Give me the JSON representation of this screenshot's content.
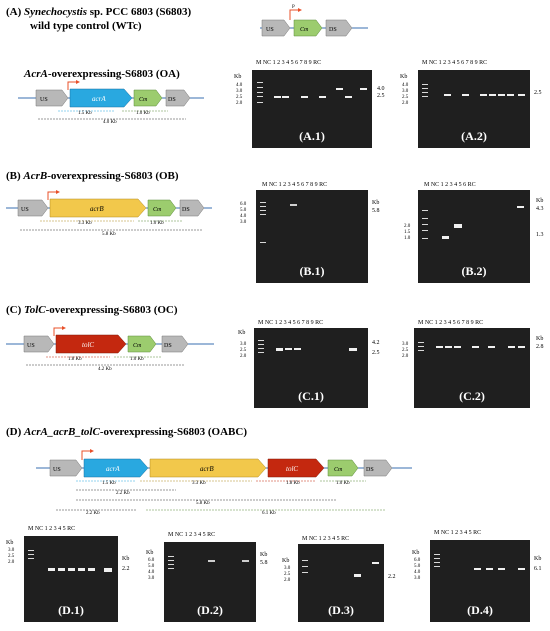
{
  "sections": {
    "A": {
      "letter": "(A)",
      "species": "Synechocystis",
      "rest": " sp. PCC 6803 (S6803)",
      "line2": "wild type control (WTc)"
    },
    "OA": {
      "gene": "AcrA",
      "rest": "-overexpressing-S6803 (OA)"
    },
    "B": {
      "letter": "(B)",
      "gene": "AcrB",
      "rest": "-overexpressing-S6803 (OB)"
    },
    "C": {
      "letter": "(C)",
      "gene": "TolC",
      "rest": "-overexpressing-S6803 (OC)"
    },
    "D": {
      "letter": "(D)",
      "gene": "AcrA_acrB_tolC",
      "rest": "-overexpressing-S6803 (OABC)"
    }
  },
  "constructs": {
    "wt": {
      "promoter": "PpsbA2",
      "us": "USpsbA2",
      "cm": "Cmr",
      "ds": "DSpsbA2"
    },
    "oa": {
      "promoter": "PpsbA2",
      "us": "USpsbA2",
      "gene": "acrA",
      "cm": "Cmr",
      "ds": "DSpsbA2",
      "dist1": "1.5 Kb",
      "dist2": "1.0 Kb",
      "dist3": "4.0 Kb"
    },
    "ob": {
      "promoter": "PpsbA2",
      "us": "USpsbA2",
      "gene": "acrB",
      "cm": "Cmr",
      "ds": "DSpsbA2",
      "dist1": "3.3 Kb",
      "dist2": "1.0 Kb",
      "dist3": "5.8 Kb"
    },
    "oc": {
      "promoter": "PpsbA2",
      "us": "USpsbA2",
      "gene": "tolC",
      "cm": "Cmr",
      "ds": "DSpsbA2",
      "dist1": "1.8 Kb",
      "dist2": "1.0 Kb",
      "dist3": "4.2 Kb"
    },
    "oabc": {
      "promoter": "PpsbA2",
      "us": "USpsbA2",
      "g1": "acrA",
      "g2": "acrB",
      "g3": "tolC",
      "cm": "Cmr",
      "ds": "DSpsbA2",
      "d1": "1.5 Kb",
      "d2": "3.3 Kb",
      "d3": "1.8 Kb",
      "d4": "1.0 Kb",
      "d5": "2.2 Kb",
      "d6": "5.8 Kb",
      "d7": "2.2 Kb",
      "d8": "6.1 Kb"
    }
  },
  "gels": {
    "a1": {
      "label": "(A.1)",
      "lanes": "M NC 1 2 3 4 5 6 7 8 9 RC",
      "sizes": "4.0\n3.0\n2.5\n2.0",
      "kb": "Kb",
      "right1": "4.0",
      "right2": "2.5"
    },
    "a2": {
      "label": "(A.2)",
      "lanes": "M NC 1 2 3 4 5 6 7 8 9 RC",
      "sizes": "4.0\n3.0\n2.5\n2.0",
      "kb": "Kb",
      "right1": "2.5"
    },
    "b1": {
      "label": "(B.1)",
      "lanes": "M NC 1 2 3 4 5 6 7 8 9 RC",
      "sizes": "6.0\n5.0\n4.0\n3.0",
      "kb": "Kb",
      "right1": "5.8"
    },
    "b2": {
      "label": "(B.2)",
      "lanes": "M NC 1 2 3 4 5 6 RC",
      "sizes": "2.0\n1.5\n1.0",
      "kb": "Kb",
      "right1": "4.3",
      "right2": "1.3"
    },
    "c1": {
      "label": "(C.1)",
      "lanes": "M NC 1 2 3 4 5 6 7 8 9 RC",
      "sizes": "3.0\n2.5\n2.0",
      "kb": "Kb",
      "right1": "4.2",
      "right2": "2.5"
    },
    "c2": {
      "label": "(C.2)",
      "lanes": "M NC 1 2 3 4 5 6 7 8 9 RC",
      "sizes": "3.0\n2.5\n2.0",
      "kb": "Kb",
      "right1": "2.8"
    },
    "d1": {
      "label": "(D.1)",
      "lanes": "M NC 1 2 3 4 5 RC",
      "sizes": "3.0\n2.5\n2.0",
      "kb": "Kb",
      "right1": "2.2"
    },
    "d2": {
      "label": "(D.2)",
      "lanes": "M NC 1 2 3 4 5 RC",
      "sizes": "6.0\n5.0\n4.0\n3.0",
      "kb": "Kb",
      "right1": "5.8"
    },
    "d3": {
      "label": "(D.3)",
      "lanes": "M NC 1 2 3 4 5 RC",
      "sizes": "3.0\n2.5\n2.0",
      "kb": "Kb",
      "right1": "2.2"
    },
    "d4": {
      "label": "(D.4)",
      "lanes": "M NC 1 2 3 4 5 RC",
      "sizes": "6.0\n5.0\n4.0\n3.0",
      "kb": "Kb",
      "right1": "6.1"
    }
  },
  "colors": {
    "us": "#b8b8b8",
    "acrA": "#29a8e0",
    "acrB": "#f2c84b",
    "tolC": "#c4280f",
    "cm": "#9ccc6e",
    "promoter": "#e8502a"
  }
}
